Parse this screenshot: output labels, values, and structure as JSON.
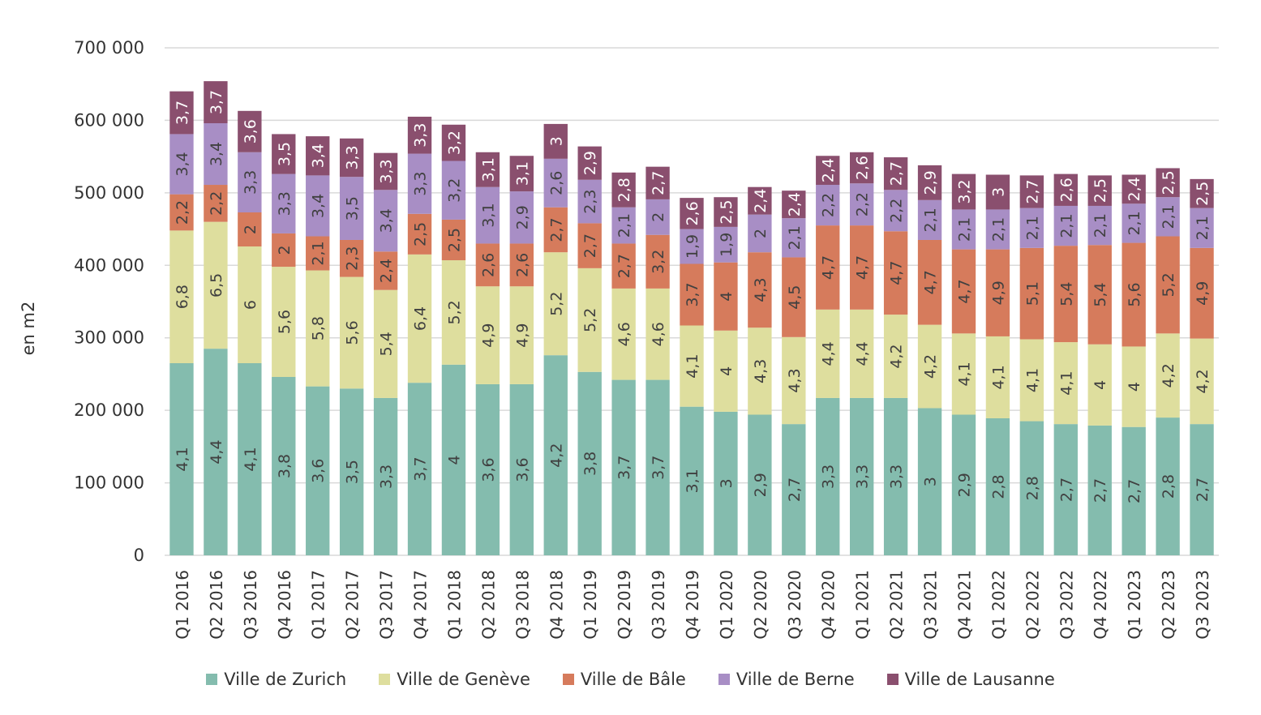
{
  "chart_data": {
    "type": "bar",
    "stacked": true,
    "title": "",
    "xlabel": "",
    "ylabel": "en m2",
    "ylim": [
      0,
      700000
    ],
    "yticks": [
      0,
      100000,
      200000,
      300000,
      400000,
      500000,
      600000,
      700000
    ],
    "ytick_labels": [
      "0",
      "100 000",
      "200 000",
      "300 000",
      "400 000",
      "500 000",
      "600 000",
      "700 000"
    ],
    "grid": true,
    "legend_position": "bottom",
    "categories": [
      "Q1 2016",
      "Q2 2016",
      "Q3 2016",
      "Q4 2016",
      "Q1 2017",
      "Q2 2017",
      "Q3 2017",
      "Q4 2017",
      "Q1 2018",
      "Q2 2018",
      "Q3 2018",
      "Q4 2018",
      "Q1 2019",
      "Q2 2019",
      "Q3 2019",
      "Q4 2019",
      "Q1 2020",
      "Q2 2020",
      "Q3 2020",
      "Q4 2020",
      "Q1 2021",
      "Q2 2021",
      "Q3 2021",
      "Q4 2021",
      "Q1 2022",
      "Q2 2022",
      "Q3 2022",
      "Q4 2022",
      "Q1 2023",
      "Q2 2023",
      "Q3 2023"
    ],
    "series": [
      {
        "name": "Ville de Zurich",
        "color": "#84bcae",
        "values": [
          265000,
          285000,
          265000,
          246000,
          233000,
          230000,
          217000,
          238000,
          263000,
          236000,
          236000,
          276000,
          253000,
          242000,
          242000,
          205000,
          198000,
          194000,
          181000,
          217000,
          217000,
          217000,
          203000,
          194000,
          189000,
          185000,
          181000,
          179000,
          177000,
          190000,
          181000
        ],
        "labels": [
          "4,1",
          "4,4",
          "4,1",
          "3,8",
          "3,6",
          "3,5",
          "3,3",
          "3,7",
          "4",
          "3,6",
          "3,6",
          "4,2",
          "3,8",
          "3,7",
          "3,7",
          "3,1",
          "3",
          "2,9",
          "2,7",
          "3,3",
          "3,3",
          "3,3",
          "3",
          "2,9",
          "2,8",
          "2,8",
          "2,7",
          "2,7",
          "2,7",
          "2,8",
          "2,7"
        ]
      },
      {
        "name": "Ville de Genève",
        "color": "#dede9e",
        "values": [
          183000,
          175000,
          161000,
          152000,
          160000,
          154000,
          149000,
          177000,
          144000,
          135000,
          135000,
          142000,
          143000,
          126000,
          126000,
          112000,
          112000,
          120000,
          120000,
          122000,
          122000,
          115000,
          115000,
          112000,
          113000,
          113000,
          113000,
          112000,
          111000,
          116000,
          118000
        ],
        "labels": [
          "6,8",
          "6,5",
          "6",
          "5,6",
          "5,8",
          "5,6",
          "5,4",
          "6,4",
          "5,2",
          "4,9",
          "4,9",
          "5,2",
          "5,2",
          "4,6",
          "4,6",
          "4,1",
          "4",
          "4,3",
          "4,3",
          "4,4",
          "4,4",
          "4,2",
          "4,2",
          "4,1",
          "4,1",
          "4,1",
          "4,1",
          "4",
          "4",
          "4,2",
          "4,2"
        ]
      },
      {
        "name": "Ville de Bâle",
        "color": "#d67b5c",
        "values": [
          50000,
          51000,
          47000,
          46000,
          47000,
          51000,
          53000,
          56000,
          56000,
          59000,
          59000,
          62000,
          62000,
          62000,
          74000,
          85000,
          94000,
          104000,
          110000,
          116000,
          116000,
          115000,
          117000,
          116000,
          120000,
          126000,
          133000,
          137000,
          143000,
          134000,
          125000
        ],
        "labels": [
          "2,2",
          "2,2",
          "2",
          "2",
          "2,1",
          "2,3",
          "2,4",
          "2,5",
          "2,5",
          "2,6",
          "2,6",
          "2,7",
          "2,7",
          "2,7",
          "3,2",
          "3,7",
          "4",
          "4,3",
          "4,5",
          "4,7",
          "4,7",
          "4,7",
          "4,7",
          "4,7",
          "4,9",
          "5,1",
          "5,4",
          "5,4",
          "5,6",
          "5,2",
          "4,9"
        ]
      },
      {
        "name": "Ville de Berne",
        "color": "#a88ec5",
        "values": [
          83000,
          85000,
          83000,
          82000,
          84000,
          87000,
          85000,
          83000,
          81000,
          78000,
          72000,
          67000,
          60000,
          50000,
          49000,
          48000,
          49000,
          52000,
          54000,
          56000,
          58000,
          57000,
          55000,
          55000,
          55000,
          55000,
          55000,
          54000,
          54000,
          54000,
          55000
        ],
        "labels": [
          "3,4",
          "3,4",
          "3,3",
          "3,3",
          "3,4",
          "3,5",
          "3,4",
          "3,3",
          "3,2",
          "3,1",
          "2,9",
          "2,6",
          "2,3",
          "2,1",
          "2",
          "1,9",
          "1,9",
          "2",
          "2,1",
          "2,2",
          "2,2",
          "2,2",
          "2,1",
          "2,1",
          "2,1",
          "2,1",
          "2,1",
          "2,1",
          "2,1",
          "2,1",
          "2,1"
        ]
      },
      {
        "name": "Ville de Lausanne",
        "color": "#8a4f6e",
        "values": [
          59000,
          58000,
          57000,
          55000,
          54000,
          53000,
          51000,
          51000,
          50000,
          48000,
          49000,
          48000,
          46000,
          48000,
          45000,
          43000,
          41000,
          38000,
          38000,
          40000,
          43000,
          45000,
          48000,
          49000,
          48000,
          45000,
          44000,
          42000,
          40000,
          40000,
          40000
        ],
        "labels": [
          "3,7",
          "3,7",
          "3,6",
          "3,5",
          "3,4",
          "3,3",
          "3,3",
          "3,3",
          "3,2",
          "3,1",
          "3,1",
          "3",
          "2,9",
          "2,8",
          "2,7",
          "2,6",
          "2,5",
          "2,4",
          "2,4",
          "2,4",
          "2,6",
          "2,7",
          "2,9",
          "3,2",
          "3",
          "2,7",
          "2,6",
          "2,5",
          "2,4",
          "2,5",
          "2,5"
        ]
      }
    ]
  }
}
